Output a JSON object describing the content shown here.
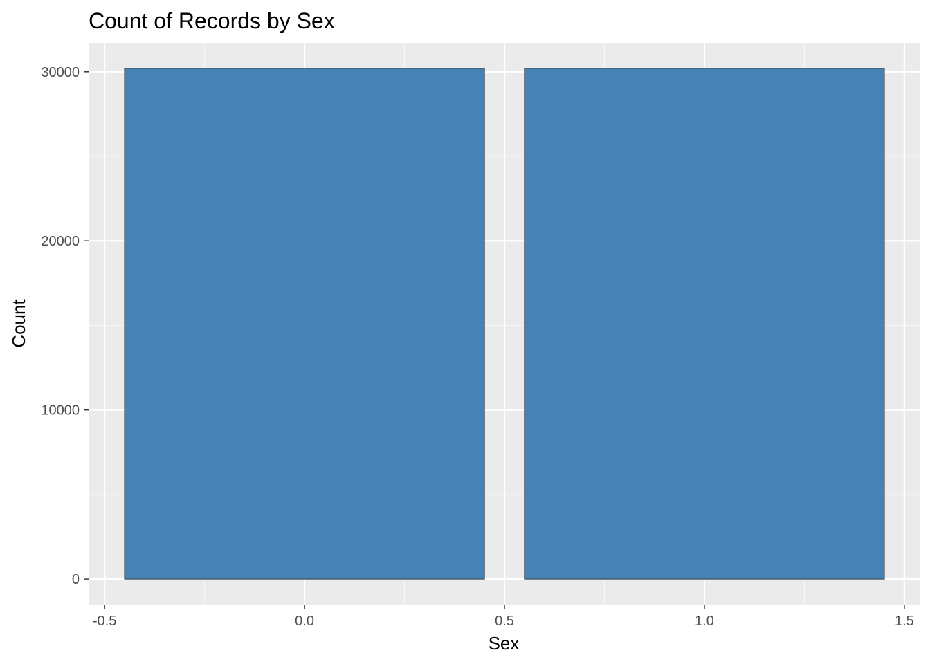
{
  "chart_data": {
    "type": "bar",
    "title": "Count of Records by Sex",
    "xlabel": "Sex",
    "ylabel": "Count",
    "x": [
      0,
      1
    ],
    "values": [
      30200,
      30200
    ],
    "bar_width": 0.9,
    "xlim": [
      -0.54,
      1.54
    ],
    "ylim": [
      -1510,
      31710
    ],
    "x_ticks": [
      -0.5,
      0.0,
      0.5,
      1.0,
      1.5
    ],
    "x_tick_labels": [
      "-0.5",
      "0.0",
      "0.5",
      "1.0",
      "1.5"
    ],
    "x_minor_ticks": [
      -0.25,
      0.25,
      0.75,
      1.25
    ],
    "y_ticks": [
      0,
      10000,
      20000,
      30000
    ],
    "y_tick_labels": [
      "0",
      "10000",
      "20000",
      "30000"
    ],
    "y_minor_ticks": [
      5000,
      15000,
      25000
    ],
    "grid": true,
    "legend": "none",
    "colors": {
      "bar_fill": "#4682b4",
      "bar_outline": "#404a54",
      "panel_background": "#ebebeb",
      "grid_major": "#ffffff",
      "grid_minor": "#f7f7f7",
      "tick_mark": "#333333"
    }
  }
}
